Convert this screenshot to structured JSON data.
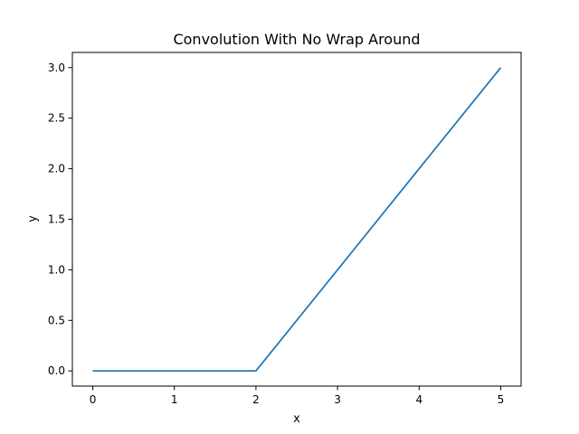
{
  "chart_data": {
    "type": "line",
    "title": "Convolution With No Wrap Around",
    "xlabel": "x",
    "ylabel": "y",
    "xlim": [
      -0.25,
      5.25
    ],
    "ylim": [
      -0.15,
      3.15
    ],
    "xticks": [
      0,
      1,
      2,
      3,
      4,
      5
    ],
    "xtick_labels": [
      "0",
      "1",
      "2",
      "3",
      "4",
      "5"
    ],
    "yticks": [
      0.0,
      0.5,
      1.0,
      1.5,
      2.0,
      2.5,
      3.0
    ],
    "ytick_labels": [
      "0.0",
      "0.5",
      "1.0",
      "1.5",
      "2.0",
      "2.5",
      "3.0"
    ],
    "grid": false,
    "series": [
      {
        "color": "#1f77b4",
        "x": [
          0,
          1,
          2,
          3,
          4,
          5
        ],
        "y": [
          0,
          0,
          0,
          1,
          2,
          3
        ]
      }
    ]
  }
}
